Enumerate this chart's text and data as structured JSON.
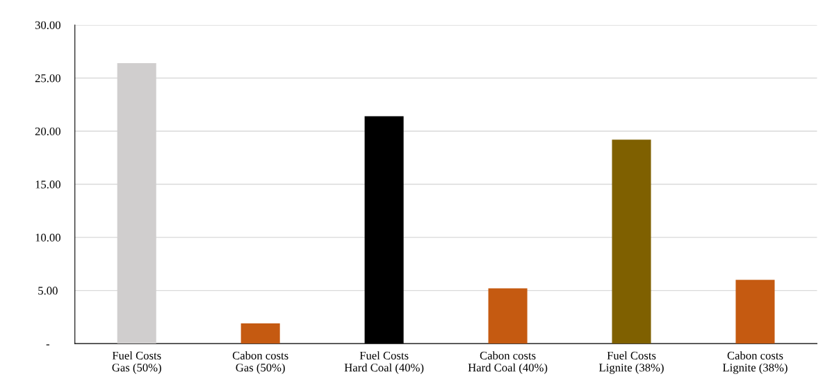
{
  "chart_data": {
    "type": "bar",
    "categories": [
      "Fuel Costs\nGas (50%)",
      "Cabon costs\nGas (50%)",
      "Fuel Costs\nHard Coal (40%)",
      "Cabon costs\nHard Coal (40%)",
      "Fuel Costs\nLignite (38%)",
      "Cabon costs\nLignite (38%)"
    ],
    "values": [
      26.4,
      1.9,
      21.4,
      5.2,
      19.2,
      6.0
    ],
    "colors": [
      "#d0cece",
      "#c55a11",
      "#000000",
      "#c55a11",
      "#7f6000",
      "#c55a11"
    ],
    "ylim": [
      0,
      30
    ],
    "yticks": [
      {
        "value": 0,
        "label": "-"
      },
      {
        "value": 5,
        "label": "5.00"
      },
      {
        "value": 10,
        "label": "10.00"
      },
      {
        "value": 15,
        "label": "15.00"
      },
      {
        "value": 20,
        "label": "20.00"
      },
      {
        "value": 25,
        "label": "25.00"
      },
      {
        "value": 30,
        "label": "30.00"
      }
    ],
    "grid": "y",
    "legend": false
  }
}
